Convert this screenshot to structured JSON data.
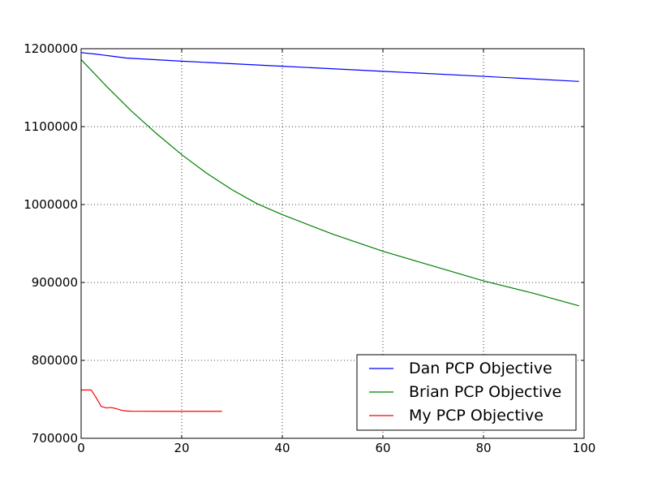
{
  "chart_data": {
    "type": "line",
    "title": "",
    "xlabel": "",
    "ylabel": "",
    "xlim": [
      0,
      100
    ],
    "ylim": [
      700000,
      1200000
    ],
    "xticks": [
      "0",
      "20",
      "40",
      "60",
      "80",
      "100"
    ],
    "yticks": [
      "700000",
      "800000",
      "900000",
      "1000000",
      "1100000",
      "1200000"
    ],
    "grid": true,
    "legend_position": "lower-right",
    "series": [
      {
        "name": "Dan PCP Objective",
        "color": "#0000ff",
        "x": [
          0,
          3,
          6,
          9,
          20,
          40,
          60,
          80,
          99
        ],
        "y": [
          1195000,
          1193000,
          1190500,
          1188000,
          1184000,
          1177500,
          1171000,
          1164500,
          1158000
        ]
      },
      {
        "name": "Brian PCP Objective",
        "color": "#008000",
        "x": [
          0,
          5,
          10,
          15,
          20,
          25,
          30,
          35,
          40,
          50,
          60,
          70,
          80,
          90,
          99
        ],
        "y": [
          1186000,
          1152000,
          1120000,
          1091000,
          1064000,
          1040000,
          1019000,
          1001000,
          987000,
          962000,
          940000,
          921000,
          902000,
          886000,
          870000
        ]
      },
      {
        "name": "My PCP Objective",
        "color": "#ff0000",
        "x": [
          0,
          1,
          2,
          3,
          4,
          5,
          6,
          7,
          8,
          9,
          10,
          12,
          15,
          20,
          25,
          28
        ],
        "y": [
          762000,
          762000,
          762000,
          752000,
          741000,
          739000,
          739500,
          738000,
          736000,
          735000,
          734800,
          734700,
          734600,
          734600,
          734600,
          734600
        ]
      }
    ]
  }
}
